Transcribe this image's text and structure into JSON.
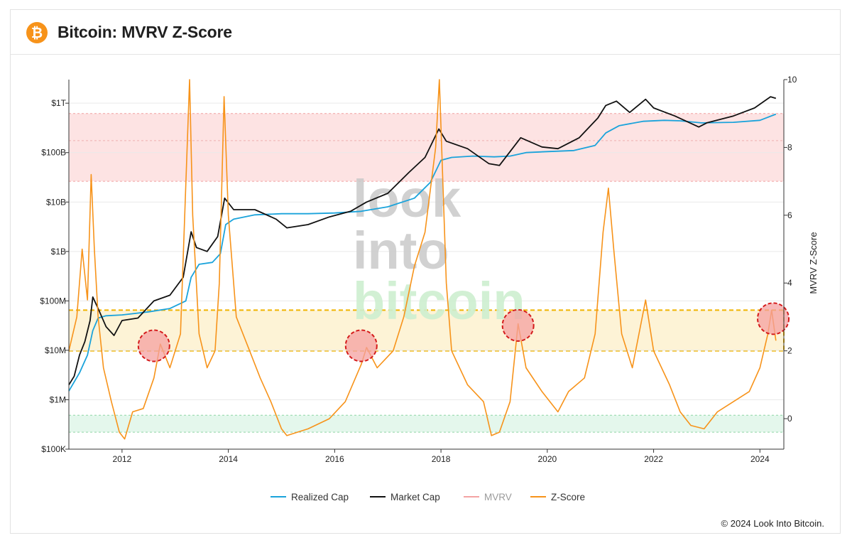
{
  "header": {
    "title": "Bitcoin: MVRV Z-Score",
    "logo_glyph": "₿",
    "logo_color": "#f7931a"
  },
  "footer": {
    "copyright": "© 2024 Look Into Bitcoin."
  },
  "watermark": {
    "line1": "look",
    "line2": "into",
    "line3": "bitcoin"
  },
  "chart_data": {
    "type": "line",
    "x_ticks": [
      "2012",
      "2014",
      "2016",
      "2018",
      "2020",
      "2022",
      "2024"
    ],
    "xlim": [
      2011.0,
      2024.45
    ],
    "y_left_ticks": [
      "$100K",
      "$1M",
      "$10M",
      "$100M",
      "$1B",
      "$10B",
      "$100B",
      "$1T"
    ],
    "y_left_scale": "log",
    "y_left_lim": [
      100000,
      3000000000000
    ],
    "y_right_label": "MVRV Z-Score",
    "y_right_ticks": [
      "0",
      "2",
      "4",
      "6",
      "8",
      "10"
    ],
    "y_right_lim": [
      -0.9,
      10
    ],
    "bands": [
      {
        "name": "overvalued",
        "z_from": 7.0,
        "z_to": 9.0,
        "color": "#fde3e3"
      },
      {
        "name": "neutral-zone",
        "z_from": 2.0,
        "z_to": 3.2,
        "color": "#fdf3d6"
      },
      {
        "name": "undervalued",
        "z_from": -0.4,
        "z_to": 0.1,
        "color": "#e4f7ec"
      }
    ],
    "highlight_circles": [
      {
        "x": 2012.6,
        "z": 2.15
      },
      {
        "x": 2016.5,
        "z": 2.15
      },
      {
        "x": 2019.45,
        "z": 2.75
      },
      {
        "x": 2024.25,
        "z": 2.95
      }
    ],
    "legend_position": "bottom-center",
    "series": [
      {
        "name": "Realized Cap",
        "axis": "left",
        "color": "#1aa3db",
        "points": [
          [
            2011.0,
            1500000
          ],
          [
            2011.2,
            3500000
          ],
          [
            2011.35,
            8000000
          ],
          [
            2011.45,
            25000000
          ],
          [
            2011.55,
            45000000
          ],
          [
            2011.7,
            50000000
          ],
          [
            2012.0,
            52000000
          ],
          [
            2012.5,
            60000000
          ],
          [
            2012.9,
            70000000
          ],
          [
            2013.2,
            100000000
          ],
          [
            2013.3,
            300000000
          ],
          [
            2013.45,
            550000000
          ],
          [
            2013.7,
            600000000
          ],
          [
            2013.85,
            900000000
          ],
          [
            2013.95,
            3500000000
          ],
          [
            2014.1,
            4500000000
          ],
          [
            2014.5,
            5500000000
          ],
          [
            2015.0,
            5800000000
          ],
          [
            2015.5,
            5800000000
          ],
          [
            2016.0,
            6000000000
          ],
          [
            2016.5,
            6500000000
          ],
          [
            2017.0,
            8000000000
          ],
          [
            2017.5,
            12000000000
          ],
          [
            2017.8,
            25000000000
          ],
          [
            2018.0,
            70000000000
          ],
          [
            2018.2,
            80000000000
          ],
          [
            2018.6,
            85000000000
          ],
          [
            2019.0,
            82000000000
          ],
          [
            2019.3,
            85000000000
          ],
          [
            2019.6,
            100000000000
          ],
          [
            2020.0,
            105000000000
          ],
          [
            2020.5,
            110000000000
          ],
          [
            2020.9,
            140000000000
          ],
          [
            2021.1,
            250000000000
          ],
          [
            2021.35,
            350000000000
          ],
          [
            2021.8,
            430000000000
          ],
          [
            2022.2,
            450000000000
          ],
          [
            2022.5,
            440000000000
          ],
          [
            2022.9,
            400000000000
          ],
          [
            2023.5,
            410000000000
          ],
          [
            2024.0,
            450000000000
          ],
          [
            2024.3,
            600000000000
          ]
        ]
      },
      {
        "name": "Market Cap",
        "axis": "left",
        "color": "#111111",
        "points": [
          [
            2011.0,
            2000000
          ],
          [
            2011.1,
            3000000
          ],
          [
            2011.2,
            8000000
          ],
          [
            2011.3,
            15000000
          ],
          [
            2011.4,
            40000000
          ],
          [
            2011.45,
            120000000
          ],
          [
            2011.55,
            70000000
          ],
          [
            2011.7,
            30000000
          ],
          [
            2011.85,
            20000000
          ],
          [
            2012.0,
            40000000
          ],
          [
            2012.3,
            45000000
          ],
          [
            2012.6,
            100000000
          ],
          [
            2012.9,
            130000000
          ],
          [
            2013.15,
            300000000
          ],
          [
            2013.3,
            2500000000
          ],
          [
            2013.4,
            1200000000
          ],
          [
            2013.6,
            1000000000
          ],
          [
            2013.8,
            2000000000
          ],
          [
            2013.93,
            12000000000
          ],
          [
            2014.1,
            7000000000
          ],
          [
            2014.5,
            7000000000
          ],
          [
            2014.9,
            4500000000
          ],
          [
            2015.1,
            3000000000
          ],
          [
            2015.5,
            3500000000
          ],
          [
            2015.9,
            5000000000
          ],
          [
            2016.3,
            6500000000
          ],
          [
            2016.6,
            10000000000
          ],
          [
            2017.0,
            15000000000
          ],
          [
            2017.4,
            40000000000
          ],
          [
            2017.7,
            80000000000
          ],
          [
            2017.96,
            300000000000
          ],
          [
            2018.1,
            170000000000
          ],
          [
            2018.5,
            120000000000
          ],
          [
            2018.9,
            60000000000
          ],
          [
            2019.1,
            55000000000
          ],
          [
            2019.5,
            200000000000
          ],
          [
            2019.9,
            130000000000
          ],
          [
            2020.2,
            120000000000
          ],
          [
            2020.6,
            200000000000
          ],
          [
            2020.95,
            500000000000
          ],
          [
            2021.1,
            900000000000
          ],
          [
            2021.3,
            1100000000000
          ],
          [
            2021.55,
            650000000000
          ],
          [
            2021.85,
            1200000000000
          ],
          [
            2022.0,
            800000000000
          ],
          [
            2022.4,
            550000000000
          ],
          [
            2022.85,
            330000000000
          ],
          [
            2023.0,
            400000000000
          ],
          [
            2023.5,
            550000000000
          ],
          [
            2023.9,
            800000000000
          ],
          [
            2024.2,
            1350000000000
          ],
          [
            2024.3,
            1250000000000
          ]
        ]
      },
      {
        "name": "MVRV",
        "axis": "left",
        "color": "#f4a3a3",
        "points": []
      },
      {
        "name": "Z-Score",
        "axis": "right",
        "color": "#f7931a",
        "points": [
          [
            2011.0,
            2.0
          ],
          [
            2011.15,
            3.0
          ],
          [
            2011.25,
            5.0
          ],
          [
            2011.35,
            3.5
          ],
          [
            2011.42,
            7.2
          ],
          [
            2011.48,
            5.0
          ],
          [
            2011.55,
            3.0
          ],
          [
            2011.65,
            1.5
          ],
          [
            2011.8,
            0.5
          ],
          [
            2011.95,
            -0.4
          ],
          [
            2012.05,
            -0.6
          ],
          [
            2012.2,
            0.2
          ],
          [
            2012.4,
            0.3
          ],
          [
            2012.6,
            1.2
          ],
          [
            2012.72,
            2.2
          ],
          [
            2012.9,
            1.5
          ],
          [
            2013.1,
            2.5
          ],
          [
            2013.27,
            10.0
          ],
          [
            2013.33,
            6.0
          ],
          [
            2013.45,
            2.5
          ],
          [
            2013.6,
            1.5
          ],
          [
            2013.75,
            2.0
          ],
          [
            2013.83,
            4.0
          ],
          [
            2013.92,
            9.5
          ],
          [
            2014.0,
            6.0
          ],
          [
            2014.15,
            3.0
          ],
          [
            2014.4,
            2.0
          ],
          [
            2014.6,
            1.2
          ],
          [
            2014.8,
            0.5
          ],
          [
            2015.0,
            -0.3
          ],
          [
            2015.1,
            -0.5
          ],
          [
            2015.5,
            -0.3
          ],
          [
            2015.9,
            0.0
          ],
          [
            2016.2,
            0.5
          ],
          [
            2016.5,
            1.6
          ],
          [
            2016.6,
            2.1
          ],
          [
            2016.8,
            1.5
          ],
          [
            2017.1,
            2.0
          ],
          [
            2017.3,
            3.0
          ],
          [
            2017.5,
            4.5
          ],
          [
            2017.7,
            5.5
          ],
          [
            2017.9,
            8.0
          ],
          [
            2017.97,
            10.0
          ],
          [
            2018.1,
            4.0
          ],
          [
            2018.2,
            2.0
          ],
          [
            2018.5,
            1.0
          ],
          [
            2018.8,
            0.5
          ],
          [
            2018.95,
            -0.5
          ],
          [
            2019.1,
            -0.4
          ],
          [
            2019.3,
            0.5
          ],
          [
            2019.45,
            2.8
          ],
          [
            2019.6,
            1.5
          ],
          [
            2019.9,
            0.8
          ],
          [
            2020.2,
            0.2
          ],
          [
            2020.4,
            0.8
          ],
          [
            2020.7,
            1.2
          ],
          [
            2020.9,
            2.5
          ],
          [
            2021.05,
            5.5
          ],
          [
            2021.15,
            6.8
          ],
          [
            2021.25,
            5.0
          ],
          [
            2021.4,
            2.5
          ],
          [
            2021.6,
            1.5
          ],
          [
            2021.85,
            3.5
          ],
          [
            2022.0,
            2.0
          ],
          [
            2022.3,
            1.0
          ],
          [
            2022.5,
            0.2
          ],
          [
            2022.7,
            -0.2
          ],
          [
            2022.95,
            -0.3
          ],
          [
            2023.2,
            0.2
          ],
          [
            2023.5,
            0.5
          ],
          [
            2023.8,
            0.8
          ],
          [
            2024.0,
            1.5
          ],
          [
            2024.15,
            2.5
          ],
          [
            2024.22,
            3.2
          ],
          [
            2024.3,
            2.3
          ]
        ]
      }
    ]
  }
}
